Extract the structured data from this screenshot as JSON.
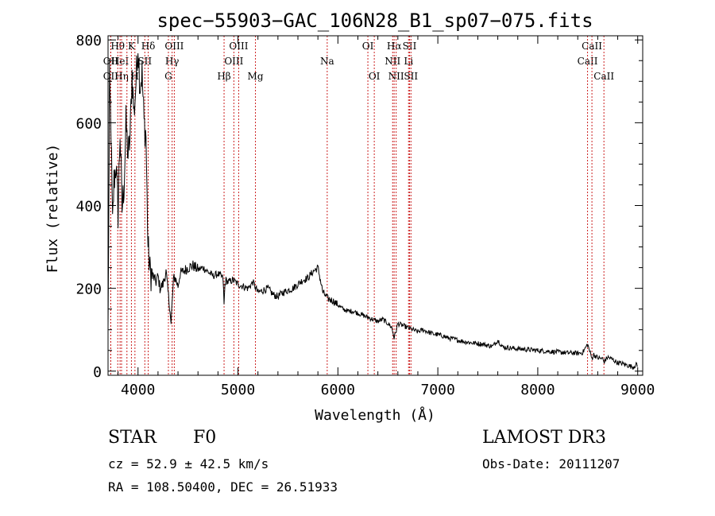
{
  "chart_data": {
    "type": "line",
    "title": "spec−55903−GAC_106N28_B1_sp07−075.fits",
    "xlabel": "Wavelength (Å)",
    "ylabel": "Flux (relative)",
    "xlim": [
      3700,
      9050
    ],
    "ylim": [
      -10,
      810
    ],
    "xticks": [
      4000,
      5000,
      6000,
      7000,
      8000,
      9000
    ],
    "yticks": [
      0,
      200,
      400,
      600,
      800
    ],
    "grid": false,
    "series": [
      {
        "name": "spectrum",
        "x": [
          3700,
          3715,
          3730,
          3745,
          3760,
          3780,
          3800,
          3820,
          3840,
          3860,
          3880,
          3900,
          3920,
          3940,
          3960,
          3980,
          4000,
          4020,
          4040,
          4060,
          4080,
          4090,
          4100,
          4120,
          4150,
          4180,
          4200,
          4220,
          4250,
          4280,
          4300,
          4320,
          4330,
          4340,
          4350,
          4360,
          4380,
          4400,
          4420,
          4450,
          4500,
          4550,
          4600,
          4650,
          4700,
          4750,
          4800,
          4850,
          4861,
          4870,
          4880,
          4900,
          4950,
          5000,
          5050,
          5100,
          5150,
          5200,
          5250,
          5300,
          5350,
          5400,
          5450,
          5500,
          5550,
          5600,
          5650,
          5700,
          5750,
          5800,
          5850,
          5900,
          5950,
          6000,
          6050,
          6100,
          6150,
          6200,
          6250,
          6300,
          6350,
          6400,
          6450,
          6500,
          6540,
          6563,
          6580,
          6600,
          6650,
          6700,
          6750,
          6800,
          6850,
          6900,
          6950,
          7000,
          7050,
          7100,
          7150,
          7200,
          7250,
          7300,
          7350,
          7400,
          7450,
          7500,
          7550,
          7600,
          7650,
          7700,
          7750,
          7800,
          7850,
          7900,
          7950,
          8000,
          8050,
          8100,
          8150,
          8200,
          8250,
          8300,
          8350,
          8400,
          8450,
          8498,
          8520,
          8542,
          8560,
          8600,
          8650,
          8662,
          8700,
          8750,
          8800,
          8850,
          8900,
          8950,
          8990,
          9000
        ],
        "values": [
          90,
          700,
          580,
          350,
          460,
          500,
          380,
          580,
          390,
          450,
          600,
          520,
          560,
          720,
          620,
          700,
          790,
          690,
          720,
          600,
          570,
          420,
          300,
          240,
          230,
          215,
          230,
          200,
          210,
          240,
          190,
          150,
          110,
          160,
          200,
          230,
          220,
          205,
          235,
          240,
          250,
          255,
          245,
          250,
          240,
          230,
          235,
          225,
          160,
          210,
          220,
          215,
          220,
          210,
          205,
          200,
          215,
          190,
          195,
          200,
          185,
          180,
          190,
          195,
          200,
          210,
          220,
          225,
          240,
          250,
          190,
          175,
          170,
          160,
          150,
          145,
          145,
          140,
          135,
          130,
          125,
          120,
          125,
          115,
          105,
          80,
          95,
          115,
          110,
          105,
          100,
          95,
          100,
          95,
          90,
          88,
          85,
          80,
          78,
          75,
          72,
          70,
          68,
          67,
          65,
          62,
          60,
          75,
          58,
          57,
          55,
          54,
          53,
          52,
          51,
          50,
          49,
          48,
          47,
          46,
          45,
          44,
          44,
          43,
          45,
          65,
          48,
          30,
          40,
          32,
          30,
          22,
          34,
          28,
          20,
          18,
          14,
          10,
          16,
          12
        ]
      }
    ],
    "line_markers": [
      {
        "wl": 3727,
        "label": "OII",
        "row": 1
      },
      {
        "wl": 3727,
        "label": "OII",
        "row": 2
      },
      {
        "wl": 3797,
        "label": "Hθ",
        "row": 0
      },
      {
        "wl": 3820,
        "label": "HeI",
        "row": 1
      },
      {
        "wl": 3835,
        "label": "Hη",
        "row": 2
      },
      {
        "wl": 3889,
        "label": "",
        "row": 0
      },
      {
        "wl": 3934,
        "label": "K",
        "row": 0
      },
      {
        "wl": 3969,
        "label": "H",
        "row": 2
      },
      {
        "wl": 4068,
        "label": "SII",
        "row": 1
      },
      {
        "wl": 4102,
        "label": "Hδ",
        "row": 0
      },
      {
        "wl": 4304,
        "label": "G",
        "row": 2
      },
      {
        "wl": 4341,
        "label": "Hγ",
        "row": 1
      },
      {
        "wl": 4363,
        "label": "OIII",
        "row": 0
      },
      {
        "wl": 4861,
        "label": "Hβ",
        "row": 2
      },
      {
        "wl": 4959,
        "label": "OIII",
        "row": 1
      },
      {
        "wl": 5007,
        "label": "OIII",
        "row": 0
      },
      {
        "wl": 5175,
        "label": "Mg",
        "row": 2
      },
      {
        "wl": 5893,
        "label": "Na",
        "row": 1
      },
      {
        "wl": 6300,
        "label": "OI",
        "row": 0
      },
      {
        "wl": 6364,
        "label": "OI",
        "row": 2
      },
      {
        "wl": 6548,
        "label": "NII",
        "row": 1
      },
      {
        "wl": 6563,
        "label": "Hα",
        "row": 0
      },
      {
        "wl": 6583,
        "label": "NII",
        "row": 2
      },
      {
        "wl": 6707,
        "label": "Li",
        "row": 1
      },
      {
        "wl": 6717,
        "label": "SII",
        "row": 0
      },
      {
        "wl": 6731,
        "label": "SII",
        "row": 2
      },
      {
        "wl": 8498,
        "label": "CaII",
        "row": 1
      },
      {
        "wl": 8542,
        "label": "CaII",
        "row": 0
      },
      {
        "wl": 8662,
        "label": "CaII",
        "row": 2
      }
    ]
  },
  "info": {
    "class": "STAR",
    "subclass": "F0",
    "survey": "LAMOST DR3",
    "cz": "cz = 52.9 ± 42.5 km/s",
    "obs_date": "Obs-Date: 20111207",
    "coords": "RA = 108.50400, DEC =  26.51933"
  },
  "colors": {
    "spectrum": "#000000",
    "marker": "#cc2222",
    "axes": "#000000"
  }
}
